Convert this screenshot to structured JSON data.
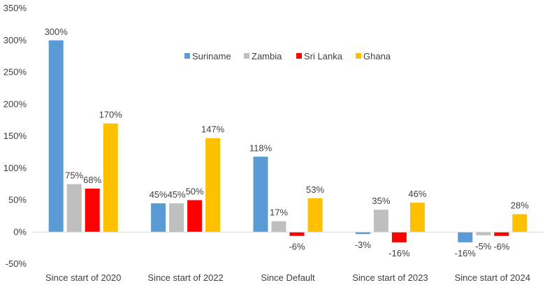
{
  "chart_data": {
    "type": "bar",
    "title": "",
    "xlabel": "",
    "ylabel": "",
    "categories": [
      "Since start of 2020",
      "Since start of 2022",
      "Since Default",
      "Since start of 2023",
      "Since start of 2024"
    ],
    "series": [
      {
        "name": "Suriname",
        "color": "#5B9BD5",
        "values": [
          300,
          45,
          118,
          -3,
          -16
        ],
        "labels": [
          "300%",
          "45%",
          "118%",
          "-3%",
          "-16%"
        ]
      },
      {
        "name": "Zambia",
        "color": "#BFBFBF",
        "values": [
          75,
          45,
          17,
          35,
          -5
        ],
        "labels": [
          "75%",
          "45%",
          "17%",
          "35%",
          "-5%"
        ]
      },
      {
        "name": "Sri Lanka",
        "color": "#FF0000",
        "values": [
          68,
          50,
          -6,
          -16,
          -6
        ],
        "labels": [
          "68%",
          "50%",
          "-6%",
          "-16%",
          "-6%"
        ]
      },
      {
        "name": "Ghana",
        "color": "#FFC000",
        "values": [
          170,
          147,
          53,
          46,
          28
        ],
        "labels": [
          "170%",
          "147%",
          "53%",
          "46%",
          "28%"
        ]
      }
    ],
    "ylim": [
      -50,
      350
    ],
    "yticks": [
      -50,
      0,
      50,
      100,
      150,
      200,
      250,
      300,
      350
    ],
    "ytick_labels": [
      "-50%",
      "0%",
      "50%",
      "100%",
      "150%",
      "200%",
      "250%",
      "300%",
      "350%"
    ],
    "grid": false,
    "legend_position": "top-center",
    "axis_line_color": "#D9D9D9"
  }
}
